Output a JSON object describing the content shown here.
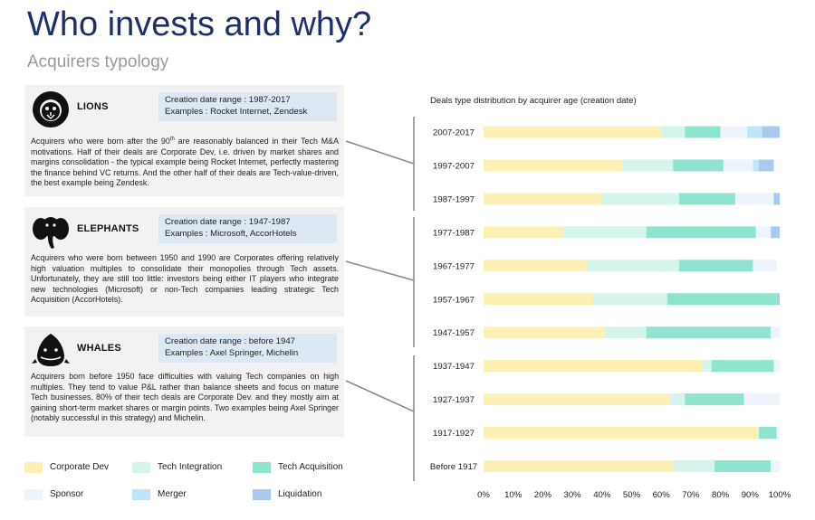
{
  "header": {
    "title": "Who invests and why?",
    "subtitle": "Acquirers typology"
  },
  "panels": [
    {
      "name": "LIONS",
      "icon": "lion-icon",
      "date_range": "Creation date range : 1987-2017",
      "examples": "Examples : Rocket Internet, Zendesk",
      "desc_before_sup": "Acquirers who were born after the 90",
      "desc_sup": "th",
      "desc_after_sup": " are reasonably balanced in their Tech M&A motivations. Half of their deals are Corporate Dev, i.e. driven by market shares and margins consolidation - the typical example being Rocket Internet, perfectly mastering the finance behind VC returns. And the other half of their deals are Tech-value-driven, the best example being Zendesk."
    },
    {
      "name": "ELEPHANTS",
      "icon": "elephant-icon",
      "date_range": "Creation date range : 1947-1987",
      "examples": "Examples : Microsoft, AccorHotels",
      "desc_before_sup": "Acquirers who were born between 1950 and 1990 are Corporates offering relatively high valuation multiples to consolidate their monopolies through Tech assets. Unfortunately, they are still too little: investors being either IT players who integrate new technologies (Microsoft) or non-Tech companies leading strategic Tech Acquisition (AccorHotels).",
      "desc_sup": "",
      "desc_after_sup": ""
    },
    {
      "name": "WHALES",
      "icon": "whale-icon",
      "date_range": "Creation date range : before 1947",
      "examples": "Examples : Axel Springer, Michelin",
      "desc_before_sup": "Acquirers born before 1950 face difficulties with valuing Tech companies on high multiples. They tend to value P&L rather than balance sheets and focus on mature Tech businesses. 80% of their tech deals are Corporate Dev. and they mostly aim at gaining short-term market shares or margin points. Two examples being Axel Springer (notably successful in this strategy) and Michelin.",
      "desc_sup": "",
      "desc_after_sup": ""
    }
  ],
  "chart_data": {
    "type": "bar",
    "orientation": "horizontal",
    "stacked": true,
    "title": "Deals type distribution by acquirer age (creation date)",
    "categories": [
      "2007-2017",
      "1997-2007",
      "1987-1997",
      "1977-1987",
      "1967-1977",
      "1957-1967",
      "1947-1957",
      "1937-1947",
      "1927-1937",
      "1917-1927",
      "Before 1917"
    ],
    "x_ticks": [
      "0%",
      "10%",
      "20%",
      "30%",
      "40%",
      "50%",
      "60%",
      "70%",
      "80%",
      "90%",
      "100%"
    ],
    "xlim": [
      0,
      100
    ],
    "legend_position": "bottom-left",
    "series": [
      {
        "name": "Corporate Dev",
        "color": "#fcf0b4",
        "values": [
          60,
          47,
          40,
          27,
          35,
          37,
          41,
          74,
          63,
          93,
          64
        ]
      },
      {
        "name": "Tech Integration",
        "color": "#d4f4ec",
        "values": [
          8,
          17,
          26,
          28,
          31,
          25,
          14,
          3,
          5,
          0,
          14
        ]
      },
      {
        "name": "Tech Acquisition",
        "color": "#8ee4cf",
        "values": [
          12,
          17,
          19,
          37,
          25,
          37,
          42,
          21,
          20,
          6,
          19
        ]
      },
      {
        "name": "Sponsor",
        "color": "#eef4fb",
        "values": [
          9,
          10,
          13,
          5,
          8,
          0,
          3,
          2,
          12,
          1,
          3
        ]
      },
      {
        "name": "Merger",
        "color": "#bfe6f8",
        "values": [
          5,
          2,
          0,
          0,
          0,
          0,
          0,
          0,
          0,
          0,
          0
        ]
      },
      {
        "name": "Liquidation",
        "color": "#a9c9f0",
        "values": [
          6,
          5,
          2,
          3,
          0,
          1,
          0,
          0,
          0,
          0,
          0
        ]
      }
    ]
  }
}
